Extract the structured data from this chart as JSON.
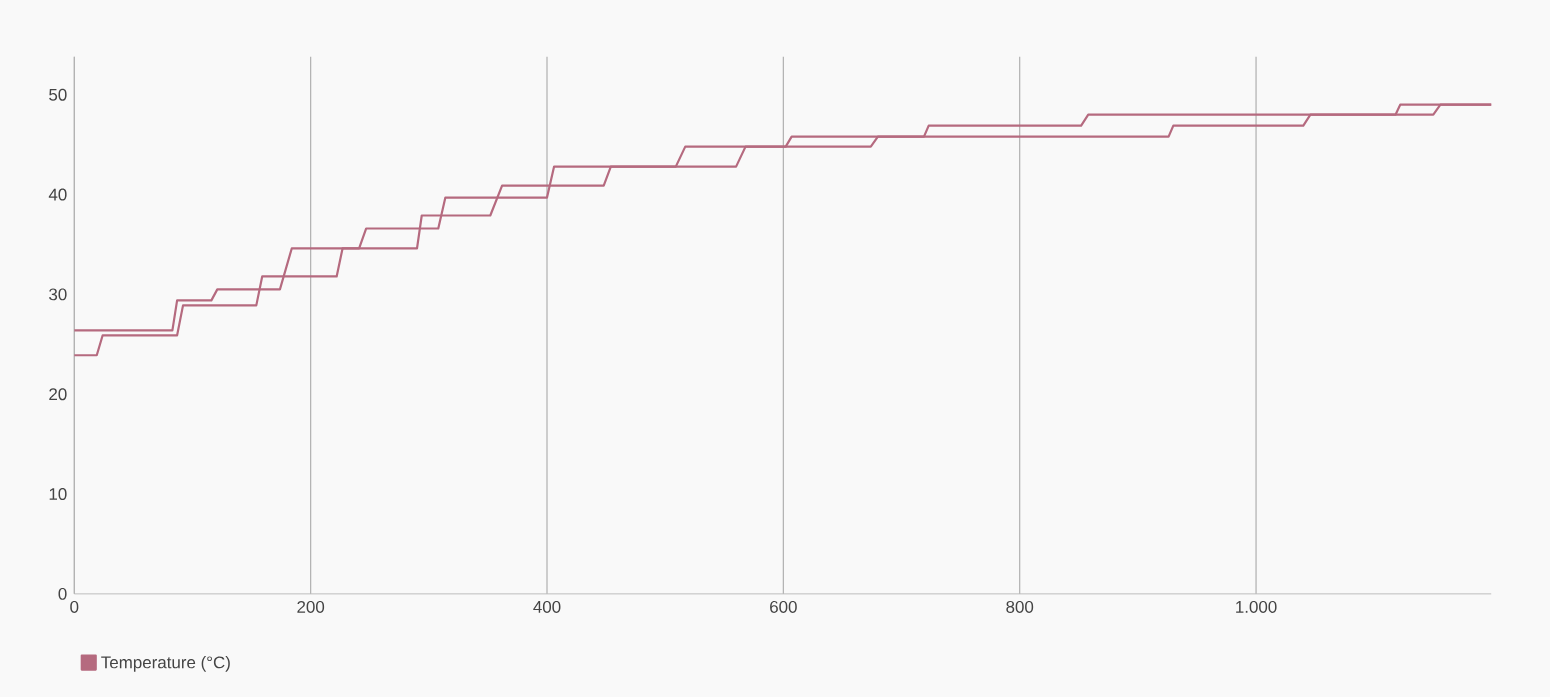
{
  "chart_data": {
    "type": "line",
    "series": [
      {
        "name": "Temperature (°C)",
        "color": "#b56a7f",
        "x": [
          0,
          83,
          87,
          116,
          121,
          174,
          184,
          241,
          247,
          308,
          314,
          400,
          406,
          509,
          517,
          602,
          607,
          719,
          723,
          852,
          858,
          1118,
          1122,
          1199
        ],
        "values": [
          26.4,
          26.4,
          29.4,
          29.4,
          30.5,
          30.5,
          34.6,
          34.6,
          36.6,
          36.6,
          39.7,
          39.7,
          42.8,
          42.8,
          44.8,
          44.8,
          45.8,
          45.8,
          46.9,
          46.9,
          48.0,
          48.0,
          49.0,
          49.0
        ]
      },
      {
        "color": "#b56a7f",
        "x": [
          0,
          19,
          24,
          87,
          92,
          154,
          159,
          222,
          227,
          290,
          294,
          352,
          362,
          448,
          454,
          560,
          568,
          674,
          680,
          926,
          930,
          1040,
          1046,
          1150,
          1156,
          1199
        ],
        "values": [
          23.9,
          23.9,
          25.9,
          25.9,
          28.9,
          28.9,
          31.8,
          31.8,
          34.6,
          34.6,
          37.9,
          37.9,
          40.9,
          40.9,
          42.8,
          42.8,
          44.8,
          44.8,
          45.8,
          45.8,
          46.9,
          46.9,
          48.0,
          48.0,
          49.0,
          49.0
        ]
      }
    ],
    "xlim": [
      0,
      1199
    ],
    "ylim": [
      0,
      53.8
    ],
    "xticks": [
      0,
      200,
      400,
      600,
      800,
      {
        "value": 1000,
        "label": "1.000"
      }
    ],
    "yticks": [
      0,
      10,
      20,
      30,
      40,
      50
    ],
    "grid": "x",
    "legend": "bottom left",
    "marker": "none",
    "line_style": "solid"
  }
}
